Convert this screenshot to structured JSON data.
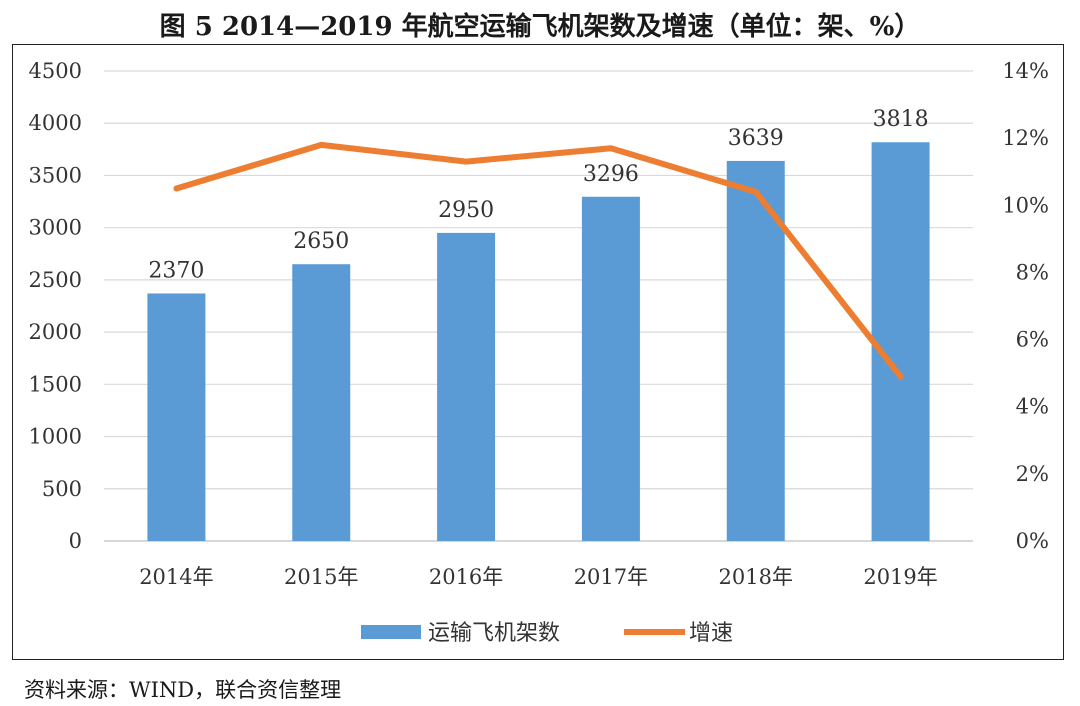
{
  "figure": {
    "title": "图 5   2014—2019 年航空运输飞机架数及增速（单位：架、%）",
    "source": "资料来源：WIND，联合资信整理"
  },
  "chart_data": {
    "type": "bar",
    "categories": [
      "2014年",
      "2015年",
      "2016年",
      "2017年",
      "2018年",
      "2019年"
    ],
    "series": [
      {
        "name": "运输飞机架数",
        "type": "bar",
        "axis": "left",
        "values": [
          2370,
          2650,
          2950,
          3296,
          3639,
          3818
        ],
        "data_labels": [
          "2370",
          "2650",
          "2950",
          "3296",
          "3639",
          "3818"
        ],
        "color": "#5b9bd5"
      },
      {
        "name": "增速",
        "type": "line",
        "axis": "right",
        "values": [
          10.5,
          11.8,
          11.3,
          11.7,
          10.4,
          4.9
        ],
        "color": "#ed7d31"
      }
    ],
    "ylim": [
      0,
      4500
    ],
    "yticks": [
      0,
      500,
      1000,
      1500,
      2000,
      2500,
      3000,
      3500,
      4000,
      4500
    ],
    "ytick_labels": [
      "0",
      "500",
      "1000",
      "1500",
      "2000",
      "2500",
      "3000",
      "3500",
      "4000",
      "4500"
    ],
    "y2lim": [
      0,
      14
    ],
    "y2ticks": [
      0,
      2,
      4,
      6,
      8,
      10,
      12,
      14
    ],
    "y2tick_labels": [
      "0%",
      "2%",
      "4%",
      "6%",
      "8%",
      "10%",
      "12%",
      "14%"
    ],
    "grid": true,
    "legend_position": "bottom",
    "grid_color": "#d9d9d9"
  }
}
